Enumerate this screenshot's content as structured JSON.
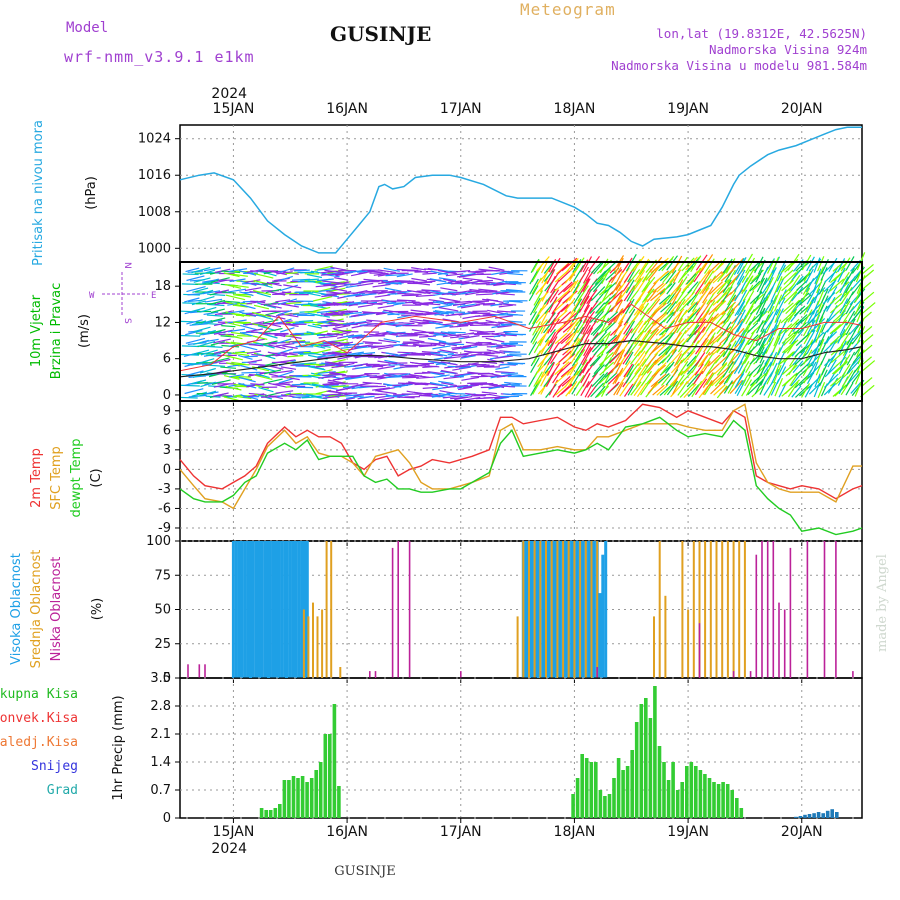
{
  "header": {
    "model_label": "Model",
    "model_name": "wrf-nmm_v3.9.1  e1km",
    "station": "GUSINJE",
    "meteogram_label": "Meteogram",
    "lonlat": "lon,lat (19.8312E, 42.5625N)",
    "altitude": "Nadmorska Visina 924m",
    "model_altitude": "Nadmorska Visina u modelu 981.584m"
  },
  "footer": {
    "station": "GUSINJE",
    "credit": "made by Angel"
  },
  "colors": {
    "pressure": "#27a9e1",
    "wind_label": "#00bb00",
    "temp": "#ee3333",
    "sfc": "#e0a020",
    "dew": "#22cc22",
    "high_cloud": "#1ea0e6",
    "mid_cloud": "#e0a020",
    "low_cloud": "#bb2299",
    "precip": "#33cc33",
    "snow": "#1e7ab8",
    "purple_text": "#a040d0"
  },
  "time_axis": {
    "year": "2024",
    "days": [
      "15JAN",
      "16JAN",
      "17JAN",
      "18JAN",
      "19JAN",
      "20JAN"
    ],
    "range_days": [
      14.53,
      20.53
    ]
  },
  "chart_data": [
    {
      "type": "line",
      "title": "Pritisak na nivou mora",
      "ylabel": "(hPa)",
      "ylim": [
        997,
        1027
      ],
      "yticks": [
        "1000",
        "1008",
        "1016",
        "1024"
      ],
      "grid": true,
      "series": [
        {
          "name": "Pritisak na nivou mora",
          "x": [
            14.53,
            14.7,
            14.83,
            15.0,
            15.15,
            15.3,
            15.45,
            15.6,
            15.75,
            15.9,
            16.0,
            16.1,
            16.2,
            16.28,
            16.33,
            16.4,
            16.5,
            16.6,
            16.75,
            16.9,
            17.0,
            17.2,
            17.4,
            17.5,
            17.6,
            17.8,
            18.0,
            18.1,
            18.2,
            18.3,
            18.4,
            18.5,
            18.6,
            18.7,
            18.9,
            19.0,
            19.1,
            19.2,
            19.3,
            19.4,
            19.45,
            19.55,
            19.7,
            19.8,
            19.95,
            20.1,
            20.2,
            20.3,
            20.4,
            20.53
          ],
          "y": [
            1015,
            1016,
            1016.5,
            1015,
            1011,
            1006,
            1003,
            1000.5,
            999,
            999,
            1002,
            1005,
            1008,
            1013.5,
            1014,
            1013,
            1013.5,
            1015.5,
            1016,
            1016,
            1015.5,
            1014,
            1011.5,
            1011,
            1011,
            1011,
            1009,
            1007.5,
            1005.5,
            1005,
            1003.5,
            1001.5,
            1000.5,
            1002,
            1002.5,
            1003,
            1004,
            1005,
            1009,
            1014,
            1016,
            1018,
            1020.5,
            1021.5,
            1022.5,
            1024,
            1025,
            1026,
            1026.5,
            1026.5
          ]
        }
      ]
    },
    {
      "type": "line",
      "title": "10m Vjetar",
      "subtitle": "Brzina i Pravac",
      "ylabel": "(m/s)",
      "ylim": [
        -1,
        22
      ],
      "yticks": [
        "0",
        "6",
        "12",
        "18"
      ],
      "compass": {
        "n": "N",
        "s": "S",
        "e": "E",
        "w": "W"
      },
      "series": [
        {
          "color": "#222222",
          "x": [
            14.53,
            14.8,
            15.0,
            15.2,
            15.4,
            15.6,
            15.8,
            16.0,
            16.3,
            16.6,
            17.0,
            17.3,
            17.6,
            17.9,
            18.1,
            18.3,
            18.5,
            18.8,
            19.0,
            19.2,
            19.4,
            19.6,
            19.8,
            20.0,
            20.2,
            20.4,
            20.53
          ],
          "y": [
            3,
            3.5,
            4,
            4.5,
            5,
            5.5,
            6,
            6.5,
            6.5,
            6,
            5.5,
            5.5,
            6,
            7.5,
            8.5,
            8.5,
            9,
            8.5,
            8,
            8,
            7.5,
            6.5,
            6,
            6,
            7,
            7.5,
            8
          ]
        },
        {
          "color": "#ee3333",
          "x": [
            14.53,
            14.8,
            15.0,
            15.2,
            15.4,
            15.6,
            15.8,
            16.0,
            16.3,
            16.6,
            17.0,
            17.3,
            17.6,
            17.9,
            18.1,
            18.3,
            18.5,
            18.8,
            19.0,
            19.2,
            19.4,
            19.6,
            19.8,
            20.0,
            20.2,
            20.4,
            20.53
          ],
          "y": [
            4,
            5,
            8,
            9,
            13,
            8,
            9,
            7,
            12,
            13,
            12,
            13,
            11,
            12,
            13,
            12,
            15,
            11,
            12,
            12,
            10,
            9,
            11,
            11,
            12,
            12,
            11.5
          ]
        }
      ]
    },
    {
      "type": "line",
      "title": "2m Temp",
      "ylabel": "(C)",
      "ylim": [
        -11,
        10.5
      ],
      "yticks": [
        "9",
        "6",
        "3",
        "0",
        "-3",
        "-6",
        "-9"
      ],
      "series": [
        {
          "name": "2m Temp",
          "color": "#ee3333",
          "x": [
            14.53,
            14.65,
            14.75,
            14.9,
            15.0,
            15.1,
            15.2,
            15.3,
            15.45,
            15.55,
            15.65,
            15.75,
            15.85,
            15.95,
            16.05,
            16.15,
            16.25,
            16.35,
            16.45,
            16.55,
            16.65,
            16.75,
            16.9,
            17.0,
            17.1,
            17.25,
            17.35,
            17.45,
            17.55,
            17.7,
            17.85,
            18.0,
            18.1,
            18.2,
            18.3,
            18.45,
            18.6,
            18.75,
            18.9,
            19.0,
            19.15,
            19.3,
            19.4,
            19.5,
            19.6,
            19.7,
            19.8,
            19.9,
            20.0,
            20.15,
            20.3,
            20.45,
            20.53
          ],
          "y": [
            1.5,
            -1,
            -2.5,
            -3,
            -2,
            -1,
            0.5,
            4,
            6.5,
            5,
            6,
            5,
            5,
            4,
            1,
            0,
            1.5,
            2,
            -1,
            0,
            0.5,
            1.5,
            1,
            1.5,
            2,
            3,
            8,
            8,
            7,
            7.5,
            8,
            6.5,
            6,
            7,
            6.5,
            7.5,
            10,
            9.5,
            8,
            9,
            8,
            7,
            9,
            8,
            -1,
            -2,
            -2.5,
            -3,
            -2.5,
            -3,
            -4.5,
            -3,
            -2.5
          ]
        },
        {
          "name": "SFC Temp",
          "color": "#e0a020",
          "x": [
            14.53,
            14.65,
            14.75,
            14.9,
            15.0,
            15.1,
            15.2,
            15.3,
            15.45,
            15.55,
            15.65,
            15.75,
            15.85,
            15.95,
            16.05,
            16.15,
            16.25,
            16.35,
            16.45,
            16.55,
            16.65,
            16.75,
            16.9,
            17.0,
            17.1,
            17.25,
            17.35,
            17.45,
            17.55,
            17.7,
            17.85,
            18.0,
            18.1,
            18.2,
            18.3,
            18.45,
            18.6,
            18.75,
            18.9,
            19.0,
            19.15,
            19.3,
            19.4,
            19.5,
            19.6,
            19.7,
            19.8,
            19.9,
            20.0,
            20.15,
            20.3,
            20.45,
            20.53
          ],
          "y": [
            0,
            -2.5,
            -4.5,
            -5,
            -6,
            -3,
            0,
            3.5,
            6,
            4,
            5,
            2.5,
            2,
            2,
            1,
            -1,
            2,
            2.5,
            3,
            1,
            -2,
            -3,
            -3,
            -2.5,
            -2,
            -1,
            6,
            7,
            3,
            3,
            3.5,
            3,
            3,
            5,
            5,
            6,
            7,
            7,
            7,
            6.5,
            6,
            6,
            9,
            10,
            1,
            -2,
            -3,
            -3.5,
            -3.5,
            -3.5,
            -5,
            0.5,
            0.5
          ]
        },
        {
          "name": "dewpt Temp",
          "color": "#22cc22",
          "x": [
            14.53,
            14.65,
            14.75,
            14.9,
            15.0,
            15.1,
            15.2,
            15.3,
            15.45,
            15.55,
            15.65,
            15.75,
            15.85,
            15.95,
            16.05,
            16.15,
            16.25,
            16.35,
            16.45,
            16.55,
            16.65,
            16.75,
            16.9,
            17.0,
            17.1,
            17.25,
            17.35,
            17.45,
            17.55,
            17.7,
            17.85,
            18.0,
            18.1,
            18.2,
            18.3,
            18.45,
            18.6,
            18.75,
            18.9,
            19.0,
            19.15,
            19.3,
            19.4,
            19.5,
            19.6,
            19.7,
            19.8,
            19.9,
            20.0,
            20.15,
            20.3,
            20.45,
            20.53
          ],
          "y": [
            -3,
            -4.5,
            -5,
            -5,
            -4,
            -2,
            -1,
            2.5,
            4,
            3,
            4.5,
            1.5,
            2,
            2,
            2,
            -1,
            -2,
            -1.5,
            -3,
            -3,
            -3.5,
            -3.5,
            -3,
            -3,
            -2,
            -0.5,
            4,
            6,
            2,
            2.5,
            3,
            2.5,
            3,
            4,
            3,
            6.5,
            7,
            8,
            6,
            5,
            5.5,
            5,
            7.5,
            6,
            -2.5,
            -4.5,
            -6,
            -7,
            -9.5,
            -9,
            -10,
            -9.5,
            -9
          ]
        }
      ]
    },
    {
      "type": "bar",
      "title": "Oblacnost",
      "legend": [
        "Visoka Oblacnost",
        "Srednja Oblacnost",
        "Niska Oblacnost"
      ],
      "ylabel": "(%)",
      "ylim": [
        0,
        100
      ],
      "yticks": [
        "0",
        "25",
        "50",
        "75",
        "100"
      ],
      "series": [
        {
          "name": "Visoka Oblacnost",
          "color": "#1ea0e6",
          "x": [
            15.0,
            15.025,
            15.05,
            15.075,
            15.1,
            15.125,
            15.15,
            15.175,
            15.2,
            15.225,
            15.25,
            15.275,
            15.3,
            15.325,
            15.35,
            15.375,
            15.4,
            15.425,
            15.45,
            15.475,
            15.5,
            15.525,
            15.55,
            15.575,
            15.6,
            15.625,
            15.65,
            17.55,
            17.575,
            17.6,
            17.625,
            17.65,
            17.675,
            17.7,
            17.725,
            17.75,
            17.775,
            17.8,
            17.825,
            17.85,
            17.875,
            17.9,
            17.925,
            17.95,
            17.975,
            18.0,
            18.025,
            18.05,
            18.075,
            18.1,
            18.125,
            18.15,
            18.175,
            18.2,
            18.225,
            18.25,
            18.275
          ],
          "y": [
            100,
            100,
            100,
            100,
            100,
            100,
            100,
            100,
            100,
            100,
            100,
            100,
            100,
            100,
            100,
            100,
            100,
            100,
            100,
            100,
            100,
            100,
            100,
            100,
            100,
            100,
            100,
            100,
            100,
            100,
            100,
            100,
            100,
            100,
            100,
            100,
            100,
            100,
            100,
            100,
            100,
            100,
            100,
            100,
            100,
            100,
            100,
            100,
            100,
            100,
            100,
            100,
            100,
            100,
            62,
            90,
            100
          ]
        },
        {
          "name": "Srednja Oblacnost",
          "color": "#e0a020",
          "x": [
            15.62,
            15.66,
            15.7,
            15.74,
            15.78,
            15.82,
            15.86,
            15.94,
            17.5,
            17.55,
            17.6,
            17.65,
            17.7,
            17.75,
            17.8,
            17.85,
            17.9,
            17.95,
            18.0,
            18.05,
            18.1,
            18.15,
            18.2,
            18.7,
            18.75,
            18.8,
            18.95,
            19.0,
            19.05,
            19.1,
            19.15,
            19.2,
            19.25,
            19.3,
            19.35,
            19.4,
            19.45,
            19.5
          ],
          "y": [
            50,
            45,
            55,
            45,
            50,
            100,
            100,
            8,
            45,
            100,
            100,
            100,
            100,
            100,
            100,
            100,
            100,
            100,
            100,
            100,
            100,
            100,
            100,
            45,
            100,
            60,
            100,
            50,
            100,
            100,
            100,
            100,
            100,
            100,
            100,
            100,
            100,
            100
          ]
        },
        {
          "name": "Niska Oblacnost",
          "color": "#bb2299",
          "x": [
            14.6,
            14.7,
            14.75,
            16.2,
            16.25,
            16.4,
            16.45,
            16.55,
            17.0,
            18.2,
            19.1,
            19.4,
            19.55,
            19.6,
            19.65,
            19.7,
            19.75,
            19.8,
            19.85,
            19.9,
            20.05,
            20.2,
            20.3,
            20.45
          ],
          "y": [
            10,
            10,
            10,
            5,
            5,
            95,
            100,
            100,
            5,
            8,
            40,
            5,
            5,
            90,
            100,
            100,
            100,
            55,
            50,
            95,
            100,
            100,
            100,
            5
          ]
        }
      ]
    },
    {
      "type": "bar",
      "title": "1hr Precip",
      "ylabel": "1hr Precip (mm)",
      "legend": [
        "Ukupna Kisa",
        "Konvek.Kisa",
        "Zaledj.Kisa",
        "Snijeg",
        "Grad"
      ],
      "ylim": [
        0,
        3.5
      ],
      "yticks": [
        "0",
        "0.7",
        "1.4",
        "2.1",
        "2.8",
        "3.5"
      ],
      "series": [
        {
          "name": "Ukupna Kisa",
          "color": "#33cc33",
          "x": [
            15.25,
            15.29,
            15.33,
            15.37,
            15.41,
            15.45,
            15.49,
            15.53,
            15.57,
            15.61,
            15.65,
            15.69,
            15.73,
            15.77,
            15.81,
            15.85,
            15.89,
            15.93,
            17.99,
            18.03,
            18.07,
            18.11,
            18.15,
            18.19,
            18.23,
            18.27,
            18.31,
            18.35,
            18.39,
            18.43,
            18.47,
            18.51,
            18.55,
            18.59,
            18.63,
            18.67,
            18.71,
            18.75,
            18.79,
            18.83,
            18.87,
            18.91,
            18.95,
            18.99,
            19.03,
            19.07,
            19.11,
            19.15,
            19.19,
            19.23,
            19.27,
            19.31,
            19.35,
            19.39,
            19.43,
            19.47
          ],
          "y": [
            0.25,
            0.2,
            0.2,
            0.25,
            0.35,
            0.95,
            0.95,
            1.05,
            1.0,
            1.05,
            0.9,
            1.0,
            1.2,
            1.4,
            2.1,
            2.1,
            2.85,
            0.8,
            0.6,
            1.0,
            1.6,
            1.5,
            1.4,
            1.4,
            0.7,
            0.55,
            0.6,
            1.0,
            1.5,
            1.2,
            1.3,
            1.7,
            2.4,
            2.85,
            3.0,
            2.5,
            3.3,
            1.8,
            1.4,
            0.95,
            1.4,
            0.7,
            0.9,
            1.3,
            1.4,
            1.3,
            1.2,
            1.1,
            1.0,
            0.9,
            0.85,
            0.9,
            0.85,
            0.7,
            0.5,
            0.25
          ]
        },
        {
          "name": "Snijeg",
          "color": "#1e7ab8",
          "x": [
            19.95,
            19.99,
            20.03,
            20.07,
            20.11,
            20.15,
            20.19,
            20.23,
            20.27,
            20.31
          ],
          "y": [
            0.03,
            0.05,
            0.08,
            0.1,
            0.12,
            0.15,
            0.12,
            0.18,
            0.22,
            0.15
          ]
        }
      ]
    }
  ]
}
